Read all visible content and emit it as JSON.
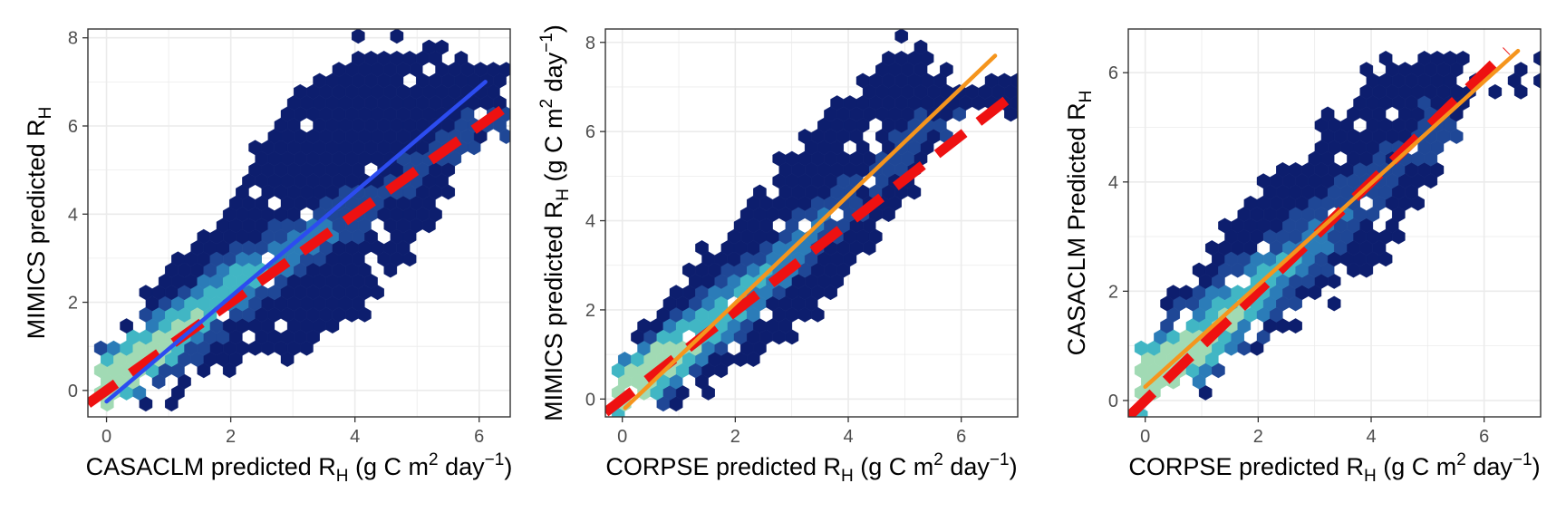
{
  "figure": {
    "background": "#ffffff",
    "grid_color": "#ebebeb",
    "hex_palette": [
      "#0d1e6e",
      "#1f4796",
      "#2b7cb8",
      "#41b6c4",
      "#a1dab4"
    ]
  },
  "chart_data": [
    {
      "type": "heatmap",
      "subtype": "hexbin-scatter",
      "xlabel": {
        "pre": "CASACLM predicted R",
        "sub": "H",
        "post": " (g C m",
        "sup": "2",
        "post2": " day",
        "sup2": "−1",
        "post3": ")"
      },
      "ylabel": {
        "pre": "MIMICS predicted R",
        "sub": "H",
        "post": "",
        "sup": "",
        "post2": "",
        "sup2": "",
        "post3": ""
      },
      "xlim": [
        -0.3,
        6.5
      ],
      "ylim": [
        -0.6,
        8.2
      ],
      "xticks": [
        0,
        2,
        4,
        6
      ],
      "yticks": [
        0,
        2,
        4,
        6,
        8
      ],
      "grid": true,
      "one_to_one_line": {
        "color": "#ee1111",
        "style": "dashed",
        "x": [
          -0.3,
          6.5
        ],
        "y": [
          -0.3,
          6.5
        ]
      },
      "fit_line": {
        "color": "#2c4cf0",
        "x": [
          0.0,
          6.1
        ],
        "y": [
          -0.25,
          7.0
        ]
      },
      "density_ridge": [
        [
          0.0,
          0.1
        ],
        [
          1.0,
          1.2
        ],
        [
          2.0,
          2.3
        ],
        [
          3.0,
          3.2
        ],
        [
          4.0,
          4.0
        ],
        [
          5.0,
          5.0
        ],
        [
          6.0,
          6.0
        ]
      ],
      "spread": {
        "lower": [
          [
            0.0,
            -0.2
          ],
          [
            1.0,
            0.0
          ],
          [
            2.0,
            0.7
          ],
          [
            3.0,
            0.9
          ],
          [
            4.0,
            1.6
          ],
          [
            5.0,
            3.5
          ],
          [
            6.0,
            5.8
          ]
        ],
        "upper": [
          [
            0.0,
            0.8
          ],
          [
            1.0,
            2.6
          ],
          [
            2.0,
            4.3
          ],
          [
            3.0,
            6.6
          ],
          [
            4.0,
            7.7
          ],
          [
            5.0,
            7.7
          ],
          [
            6.0,
            7.3
          ]
        ]
      }
    },
    {
      "type": "heatmap",
      "subtype": "hexbin-scatter",
      "xlabel": {
        "pre": "CORPSE predicted R",
        "sub": "H",
        "post": " (g C m",
        "sup": "2",
        "post2": " day",
        "sup2": "−1",
        "post3": ")"
      },
      "ylabel": {
        "pre": "MIMICS predicted R",
        "sub": "H",
        "post": " (g C m",
        "sup": "2",
        "post2": " day",
        "sup2": "−1",
        "post3": ")"
      },
      "xlim": [
        -0.3,
        7.0
      ],
      "ylim": [
        -0.4,
        8.3
      ],
      "xticks": [
        0,
        2,
        4,
        6
      ],
      "yticks": [
        0,
        2,
        4,
        6,
        8
      ],
      "grid": true,
      "one_to_one_line": {
        "color": "#ee1111",
        "style": "dashed",
        "x": [
          -0.3,
          7.0
        ],
        "y": [
          -0.3,
          6.9
        ]
      },
      "fit_line": {
        "color": "#f5951d",
        "x": [
          0.05,
          6.6
        ],
        "y": [
          -0.2,
          7.7
        ]
      },
      "density_ridge": [
        [
          0.0,
          0.1
        ],
        [
          1.0,
          1.1
        ],
        [
          2.0,
          2.1
        ],
        [
          3.0,
          3.3
        ],
        [
          4.0,
          4.4
        ],
        [
          5.0,
          5.8
        ]
      ],
      "spread": {
        "lower": [
          [
            0.0,
            -0.2
          ],
          [
            1.0,
            0.2
          ],
          [
            2.0,
            0.7
          ],
          [
            3.0,
            1.7
          ],
          [
            4.0,
            2.8
          ],
          [
            5.0,
            4.6
          ],
          [
            6.0,
            6.5
          ]
        ],
        "upper": [
          [
            0.0,
            0.9
          ],
          [
            1.0,
            2.4
          ],
          [
            2.0,
            4.0
          ],
          [
            3.0,
            5.4
          ],
          [
            4.0,
            7.0
          ],
          [
            5.0,
            7.9
          ],
          [
            6.0,
            6.9
          ]
        ]
      }
    },
    {
      "type": "heatmap",
      "subtype": "hexbin-scatter",
      "xlabel": {
        "pre": "CORPSE predicted R",
        "sub": "H",
        "post": " (g C m",
        "sup": "2",
        "post2": " day",
        "sup2": "−1",
        "post3": ")"
      },
      "ylabel": {
        "pre": "CASACLM Predicted R",
        "sub": "H",
        "post": "",
        "sup": "",
        "post2": "",
        "sup2": "",
        "post3": ""
      },
      "xlim": [
        -0.3,
        7.0
      ],
      "ylim": [
        -0.3,
        6.8
      ],
      "xticks": [
        0,
        2,
        4,
        6
      ],
      "yticks": [
        0,
        2,
        4,
        6
      ],
      "grid": true,
      "one_to_one_line": {
        "color": "#ee1111",
        "style": "dashed",
        "x": [
          -0.3,
          6.4
        ],
        "y": [
          -0.3,
          6.4
        ]
      },
      "fit_line": {
        "color": "#f5951d",
        "x": [
          0.0,
          6.6
        ],
        "y": [
          0.25,
          6.4
        ]
      },
      "density_ridge": [
        [
          0.0,
          0.3
        ],
        [
          1.0,
          1.1
        ],
        [
          2.0,
          2.0
        ],
        [
          3.0,
          2.9
        ],
        [
          4.0,
          3.9
        ],
        [
          5.0,
          4.9
        ]
      ],
      "spread": {
        "lower": [
          [
            0.0,
            0.0
          ],
          [
            1.0,
            0.4
          ],
          [
            2.0,
            1.2
          ],
          [
            3.0,
            1.9
          ],
          [
            4.0,
            2.5
          ],
          [
            5.0,
            3.8
          ],
          [
            6.0,
            5.9
          ]
        ],
        "upper": [
          [
            0.0,
            1.0
          ],
          [
            1.0,
            2.4
          ],
          [
            2.0,
            3.8
          ],
          [
            3.0,
            4.6
          ],
          [
            4.0,
            5.9
          ],
          [
            5.0,
            6.2
          ],
          [
            6.0,
            6.0
          ]
        ]
      }
    }
  ]
}
